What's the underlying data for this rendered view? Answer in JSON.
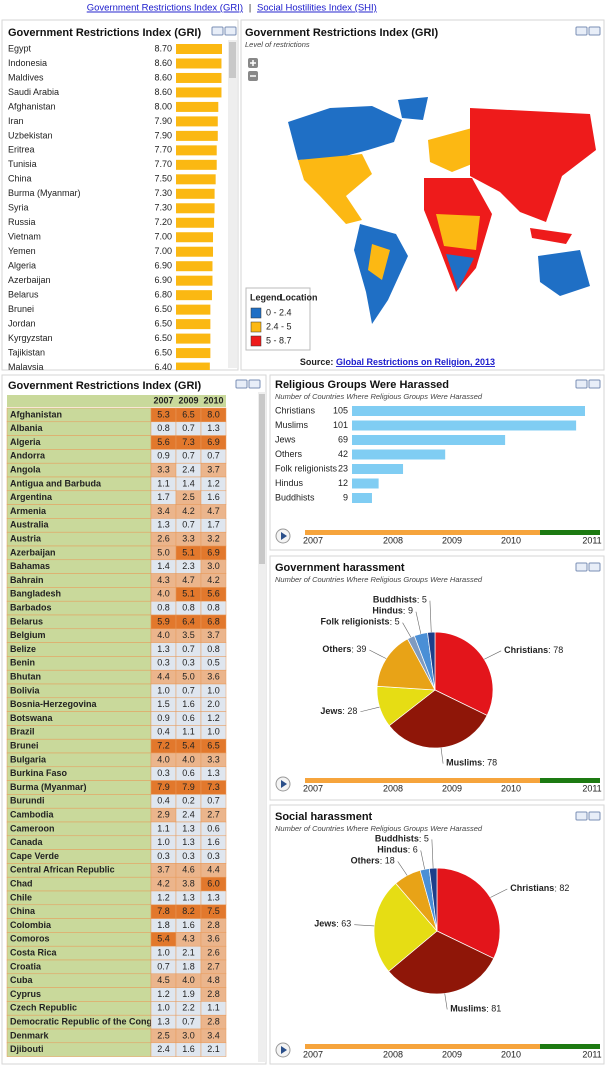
{
  "nav": {
    "links": [
      "Government Restrictions Index (GRI)",
      "Social Hostilities Index (SHI)"
    ],
    "separator": "|"
  },
  "chart_data": [
    {
      "type": "hbar",
      "title": "Government Restrictions Index (GRI)",
      "color": "#fbb812",
      "categories": [
        "Egypt",
        "Indonesia",
        "Maldives",
        "Saudi Arabia",
        "Afghanistan",
        "Iran",
        "Uzbekistan",
        "Eritrea",
        "Tunisia",
        "China",
        "Burma (Myanmar)",
        "Syria",
        "Russia",
        "Vietnam",
        "Yemen",
        "Algeria",
        "Azerbaijan",
        "Belarus",
        "Brunei",
        "Jordan",
        "Kyrgyzstan",
        "Tajikistan",
        "Malaysia"
      ],
      "values": [
        8.7,
        8.6,
        8.6,
        8.6,
        8.0,
        7.9,
        7.9,
        7.7,
        7.7,
        7.5,
        7.3,
        7.3,
        7.2,
        7.0,
        7.0,
        6.9,
        6.9,
        6.8,
        6.5,
        6.5,
        6.5,
        6.5,
        6.4
      ],
      "value_labels": [
        "8.70",
        "8.60",
        "8.60",
        "8.60",
        "8.00",
        "7.90",
        "7.90",
        "7.70",
        "7.70",
        "7.50",
        "7.30",
        "7.30",
        "7.20",
        "7.00",
        "7.00",
        "6.90",
        "6.90",
        "6.80",
        "6.50",
        "6.50",
        "6.50",
        "6.50",
        "6.40"
      ]
    },
    {
      "type": "map",
      "title": "Government Restrictions Index (GRI)",
      "subtitle": "Level of restrictions",
      "legend": {
        "title": "Legend",
        "subtitle": "Location",
        "items": [
          {
            "label": "0 - 2.4",
            "color": "#1f6fc5",
            "range": [
              0,
              2.4
            ]
          },
          {
            "label": "2.4 - 5",
            "color": "#fcb813",
            "range": [
              2.4,
              5
            ]
          },
          {
            "label": "5 - 8.7",
            "color": "#ee1b1b",
            "range": [
              5,
              8.7
            ]
          }
        ]
      },
      "source_label": "Source:",
      "source": "Global Restrictions on Religion, 2013"
    },
    {
      "type": "hbar-groups",
      "title": "Religious Groups Were Harassed",
      "subtitle": "Number of Countries Where Religious Groups Were Harassed",
      "color": "#80cdf3",
      "categories": [
        "Christians",
        "Muslims",
        "Jews",
        "Others",
        "Folk religionists",
        "Hindus",
        "Buddhists"
      ],
      "values": [
        105,
        101,
        69,
        42,
        23,
        12,
        9
      ],
      "timeline": [
        "2007",
        "2008",
        "2009",
        "2010",
        "2011"
      ]
    },
    {
      "type": "pie",
      "title": "Government harassment",
      "subtitle": "Number of Countries Where Religious Groups Were Harassed",
      "categories": [
        "Christians",
        "Muslims",
        "Jews",
        "Others",
        "Folk religionists",
        "Hindus",
        "Buddhists"
      ],
      "values": [
        78,
        78,
        28,
        39,
        5,
        9,
        5
      ],
      "colors": [
        "#e3151b",
        "#8f1608",
        "#e6dd14",
        "#e8a317",
        "#7f9bc0",
        "#4a8fd6",
        "#1d3f8a"
      ],
      "timeline": [
        "2007",
        "2008",
        "2009",
        "2010",
        "2011"
      ]
    },
    {
      "type": "pie",
      "title": "Social harassment",
      "subtitle": "Number of Countries Where Religious Groups Were Harassed",
      "categories": [
        "Christians",
        "Muslims",
        "Jews",
        "Others",
        "Hindus",
        "Buddhists"
      ],
      "values": [
        82,
        81,
        63,
        18,
        6,
        5
      ],
      "colors": [
        "#e3151b",
        "#8f1608",
        "#e6dd14",
        "#e8a317",
        "#4a8fd6",
        "#1d3f8a"
      ],
      "timeline": [
        "2007",
        "2008",
        "2009",
        "2010",
        "2011"
      ]
    }
  ],
  "table": {
    "title": "Government Restrictions Index (GRI)",
    "columns": [
      "2007",
      "2009",
      "2010"
    ],
    "cell_colors": [
      "#dfe6ef",
      "#ebb58c",
      "#e2782c"
    ],
    "name_color": "#c9d99b",
    "rows": [
      [
        "Afghanistan",
        "5.3",
        "6.5",
        "8.0"
      ],
      [
        "Albania",
        "0.8",
        "0.7",
        "1.3"
      ],
      [
        "Algeria",
        "5.6",
        "7.3",
        "6.9"
      ],
      [
        "Andorra",
        "0.9",
        "0.7",
        "0.7"
      ],
      [
        "Angola",
        "3.3",
        "2.4",
        "3.7"
      ],
      [
        "Antigua and Barbuda",
        "1.1",
        "1.4",
        "1.2"
      ],
      [
        "Argentina",
        "1.7",
        "2.5",
        "1.6"
      ],
      [
        "Armenia",
        "3.4",
        "4.2",
        "4.7"
      ],
      [
        "Australia",
        "1.3",
        "0.7",
        "1.7"
      ],
      [
        "Austria",
        "2.6",
        "3.3",
        "3.2"
      ],
      [
        "Azerbaijan",
        "5.0",
        "5.1",
        "6.9"
      ],
      [
        "Bahamas",
        "1.4",
        "2.3",
        "3.0"
      ],
      [
        "Bahrain",
        "4.3",
        "4.7",
        "4.2"
      ],
      [
        "Bangladesh",
        "4.0",
        "5.1",
        "5.6"
      ],
      [
        "Barbados",
        "0.8",
        "0.8",
        "0.8"
      ],
      [
        "Belarus",
        "5.9",
        "6.4",
        "6.8"
      ],
      [
        "Belgium",
        "4.0",
        "3.5",
        "3.7"
      ],
      [
        "Belize",
        "1.3",
        "0.7",
        "0.8"
      ],
      [
        "Benin",
        "0.3",
        "0.3",
        "0.5"
      ],
      [
        "Bhutan",
        "4.4",
        "5.0",
        "3.6"
      ],
      [
        "Bolivia",
        "1.0",
        "0.7",
        "1.0"
      ],
      [
        "Bosnia-Herzegovina",
        "1.5",
        "1.6",
        "2.0"
      ],
      [
        "Botswana",
        "0.9",
        "0.6",
        "1.2"
      ],
      [
        "Brazil",
        "0.4",
        "1.1",
        "1.0"
      ],
      [
        "Brunei",
        "7.2",
        "5.4",
        "6.5"
      ],
      [
        "Bulgaria",
        "4.0",
        "4.0",
        "3.3"
      ],
      [
        "Burkina Faso",
        "0.3",
        "0.6",
        "1.3"
      ],
      [
        "Burma (Myanmar)",
        "7.9",
        "7.9",
        "7.3"
      ],
      [
        "Burundi",
        "0.4",
        "0.2",
        "0.7"
      ],
      [
        "Cambodia",
        "2.9",
        "2.4",
        "2.7"
      ],
      [
        "Cameroon",
        "1.1",
        "1.3",
        "0.6"
      ],
      [
        "Canada",
        "1.0",
        "1.3",
        "1.6"
      ],
      [
        "Cape Verde",
        "0.3",
        "0.3",
        "0.3"
      ],
      [
        "Central African Republic",
        "3.7",
        "4.6",
        "4.4"
      ],
      [
        "Chad",
        "4.2",
        "3.8",
        "6.0"
      ],
      [
        "Chile",
        "1.2",
        "1.3",
        "1.3"
      ],
      [
        "China",
        "7.8",
        "8.2",
        "7.5"
      ],
      [
        "Colombia",
        "1.8",
        "1.6",
        "2.8"
      ],
      [
        "Comoros",
        "5.4",
        "4.3",
        "3.6"
      ],
      [
        "Costa Rica",
        "1.0",
        "2.1",
        "2.6"
      ],
      [
        "Croatia",
        "0.7",
        "1.8",
        "2.7"
      ],
      [
        "Cuba",
        "4.5",
        "4.0",
        "4.8"
      ],
      [
        "Cyprus",
        "1.2",
        "1.9",
        "2.8"
      ],
      [
        "Czech Republic",
        "1.0",
        "2.2",
        "1.1"
      ],
      [
        "Democratic Republic of the Congo",
        "1.3",
        "0.7",
        "2.8"
      ],
      [
        "Denmark",
        "2.5",
        "3.0",
        "3.4"
      ],
      [
        "Djibouti",
        "2.4",
        "1.6",
        "2.1"
      ]
    ]
  }
}
